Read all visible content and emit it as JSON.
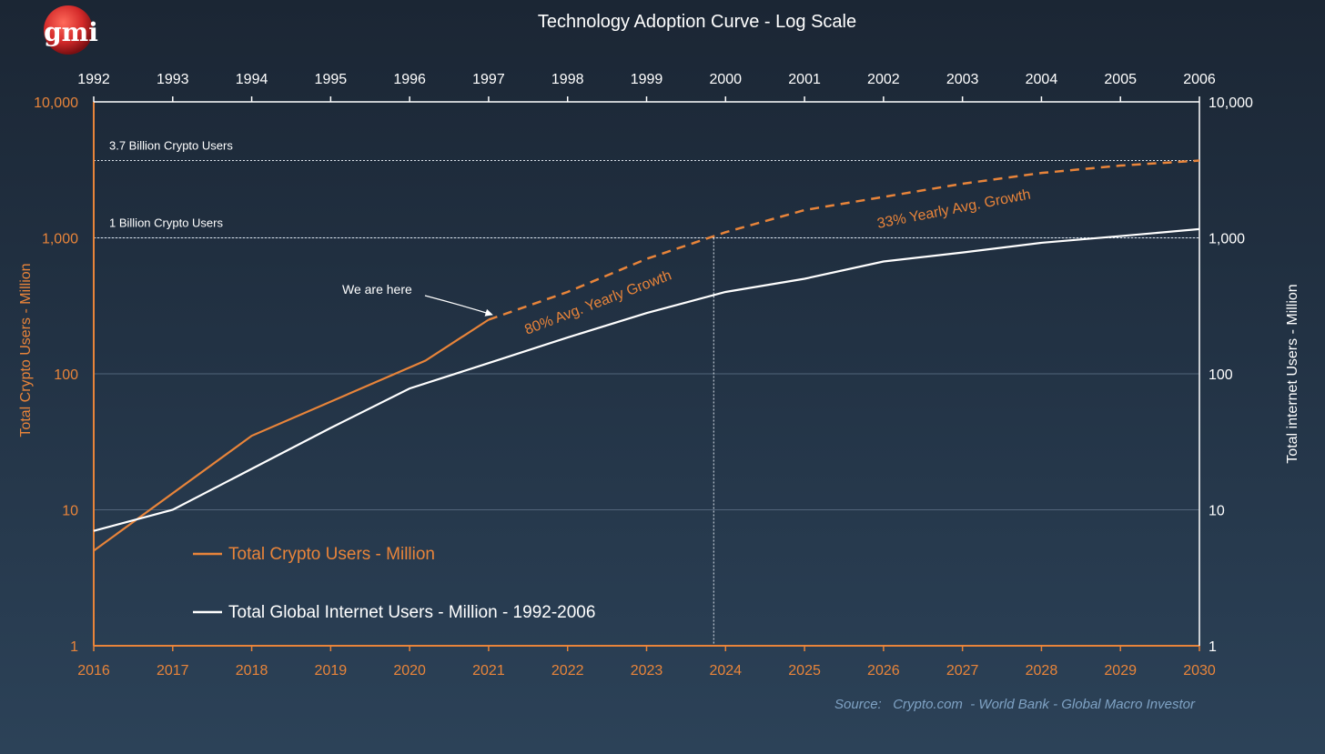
{
  "logo": {
    "text": "gmi",
    "color": "#d42a2a"
  },
  "source": "Source:   Crypto.com  - World Bank - Global Macro Investor",
  "colors": {
    "crypto": "#e8843a",
    "internet": "#ffffff",
    "source": "#7fa2c4",
    "background_top": "#1b2634",
    "background_bottom": "#2c4258"
  },
  "chart_data": {
    "type": "line",
    "title": "Technology Adoption Curve - Log Scale",
    "ylabel": "Total Crypto Users - Million",
    "y2label": "Total internet Users - Million",
    "yscale": "log",
    "ylim": [
      1,
      10000
    ],
    "y_ticks": [
      "1",
      "10",
      "100",
      "1,000",
      "10,000"
    ],
    "x_bottom_ticks": [
      "2016",
      "2017",
      "2018",
      "2019",
      "2020",
      "2021",
      "2022",
      "2023",
      "2024",
      "2025",
      "2026",
      "2027",
      "2028",
      "2029",
      "2030"
    ],
    "x_top_ticks": [
      "1992",
      "1993",
      "1994",
      "1995",
      "1996",
      "1997",
      "1998",
      "1999",
      "2000",
      "2001",
      "2002",
      "2003",
      "2004",
      "2005",
      "2006"
    ],
    "grid": true,
    "legend_position": "bottom-left",
    "series": [
      {
        "name": "Total Crypto Users - Million",
        "x": [
          2016,
          2018,
          2020.2,
          2021,
          2022,
          2023,
          2024,
          2025,
          2026,
          2027,
          2028,
          2029,
          2030
        ],
        "values": [
          5,
          35,
          125,
          250,
          400,
          700,
          1100,
          1600,
          2000,
          2500,
          3000,
          3400,
          3700
        ],
        "style": "solid-until-2021-then-dashed"
      },
      {
        "name": "Total Global Internet Users - Million - 1992-2006",
        "x": [
          2016,
          2017,
          2018,
          2019,
          2020,
          2021,
          2022,
          2023,
          2024,
          2025,
          2026,
          2027,
          2028,
          2029,
          2030
        ],
        "values": [
          7,
          10,
          20,
          40,
          78,
          120,
          185,
          280,
          400,
          500,
          670,
          780,
          920,
          1030,
          1160
        ]
      }
    ],
    "reference_lines": [
      {
        "y": 3700,
        "label": "3.7 Billion Crypto Users"
      },
      {
        "y": 1000,
        "label": "1 Billion Crypto Users"
      }
    ],
    "vertical_marker": {
      "x": 2023.85
    },
    "annotations": [
      {
        "text": "We are here",
        "x": 2021,
        "y": 250
      },
      {
        "text": "80% Avg. Yearly Growth"
      },
      {
        "text": "33% Yearly Avg. Growth"
      }
    ]
  }
}
